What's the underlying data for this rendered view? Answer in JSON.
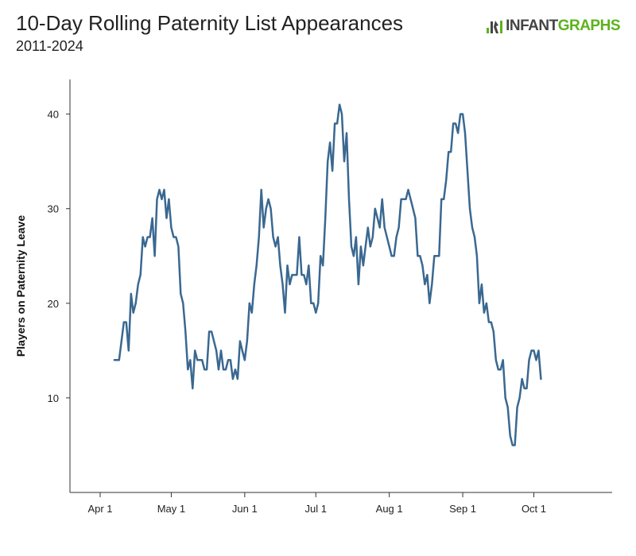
{
  "header": {
    "title": "10-Day Rolling Paternity List Appearances",
    "subtitle": "2011-2024",
    "logo": {
      "part1": "INFANT",
      "part2": "GRAPHS",
      "accent": "#5cb31c"
    }
  },
  "chart_data": {
    "type": "line",
    "title": "10-Day Rolling Paternity List Appearances",
    "subtitle": "2011-2024",
    "xlabel": "",
    "ylabel": "Players on Paternity Leave",
    "x_ticks": [
      "Apr 1",
      "May 1",
      "Jun 1",
      "Jul 1",
      "Aug 1",
      "Sep 1",
      "Oct 1"
    ],
    "ylim": [
      0,
      44
    ],
    "y_ticks": [
      10,
      20,
      30,
      40
    ],
    "grid": false,
    "line_color": "#3a6891",
    "series": [
      {
        "values": [
          [
            "Apr 7",
            14
          ],
          [
            "Apr 9",
            14
          ],
          [
            "Apr 10",
            16
          ],
          [
            "Apr 11",
            18
          ],
          [
            "Apr 12",
            18
          ],
          [
            "Apr 13",
            15
          ],
          [
            "Apr 14",
            21
          ],
          [
            "Apr 15",
            19
          ],
          [
            "Apr 16",
            20
          ],
          [
            "Apr 17",
            22
          ],
          [
            "Apr 18",
            23
          ],
          [
            "Apr 19",
            27
          ],
          [
            "Apr 20",
            26
          ],
          [
            "Apr 21",
            27
          ],
          [
            "Apr 22",
            27
          ],
          [
            "Apr 23",
            29
          ],
          [
            "Apr 24",
            25
          ],
          [
            "Apr 25",
            31
          ],
          [
            "Apr 26",
            32
          ],
          [
            "Apr 27",
            31
          ],
          [
            "Apr 28",
            32
          ],
          [
            "Apr 29",
            29
          ],
          [
            "Apr 30",
            31
          ],
          [
            "May 1",
            28
          ],
          [
            "May 2",
            27
          ],
          [
            "May 3",
            27
          ],
          [
            "May 4",
            26
          ],
          [
            "May 5",
            21
          ],
          [
            "May 6",
            20
          ],
          [
            "May 7",
            17
          ],
          [
            "May 8",
            13
          ],
          [
            "May 9",
            14
          ],
          [
            "May 10",
            11
          ],
          [
            "May 11",
            15
          ],
          [
            "May 12",
            14
          ],
          [
            "May 13",
            14
          ],
          [
            "May 14",
            14
          ],
          [
            "May 15",
            13
          ],
          [
            "May 16",
            13
          ],
          [
            "May 17",
            17
          ],
          [
            "May 18",
            17
          ],
          [
            "May 19",
            16
          ],
          [
            "May 20",
            15
          ],
          [
            "May 21",
            13
          ],
          [
            "May 22",
            15
          ],
          [
            "May 23",
            13
          ],
          [
            "May 24",
            13
          ],
          [
            "May 25",
            14
          ],
          [
            "May 26",
            14
          ],
          [
            "May 27",
            12
          ],
          [
            "May 28",
            13
          ],
          [
            "May 29",
            12
          ],
          [
            "May 30",
            16
          ],
          [
            "May 31",
            15
          ],
          [
            "Jun 1",
            14
          ],
          [
            "Jun 2",
            16
          ],
          [
            "Jun 3",
            20
          ],
          [
            "Jun 4",
            19
          ],
          [
            "Jun 5",
            22
          ],
          [
            "Jun 6",
            24
          ],
          [
            "Jun 7",
            27
          ],
          [
            "Jun 8",
            32
          ],
          [
            "Jun 9",
            28
          ],
          [
            "Jun 10",
            30
          ],
          [
            "Jun 11",
            31
          ],
          [
            "Jun 12",
            30
          ],
          [
            "Jun 13",
            27
          ],
          [
            "Jun 14",
            26
          ],
          [
            "Jun 15",
            27
          ],
          [
            "Jun 16",
            24
          ],
          [
            "Jun 17",
            22
          ],
          [
            "Jun 18",
            19
          ],
          [
            "Jun 19",
            24
          ],
          [
            "Jun 20",
            22
          ],
          [
            "Jun 21",
            23
          ],
          [
            "Jun 22",
            23
          ],
          [
            "Jun 23",
            23
          ],
          [
            "Jun 24",
            27
          ],
          [
            "Jun 25",
            23
          ],
          [
            "Jun 26",
            23
          ],
          [
            "Jun 27",
            22
          ],
          [
            "Jun 28",
            24
          ],
          [
            "Jun 29",
            20
          ],
          [
            "Jun 30",
            20
          ],
          [
            "Jul 1",
            19
          ],
          [
            "Jul 2",
            20
          ],
          [
            "Jul 3",
            25
          ],
          [
            "Jul 4",
            24
          ],
          [
            "Jul 5",
            29
          ],
          [
            "Jul 6",
            35
          ],
          [
            "Jul 7",
            37
          ],
          [
            "Jul 8",
            34
          ],
          [
            "Jul 9",
            39
          ],
          [
            "Jul 10",
            39
          ],
          [
            "Jul 11",
            41
          ],
          [
            "Jul 12",
            40
          ],
          [
            "Jul 13",
            35
          ],
          [
            "Jul 14",
            38
          ],
          [
            "Jul 15",
            31
          ],
          [
            "Jul 16",
            26
          ],
          [
            "Jul 17",
            25
          ],
          [
            "Jul 18",
            27
          ],
          [
            "Jul 19",
            22
          ],
          [
            "Jul 20",
            26
          ],
          [
            "Jul 21",
            24
          ],
          [
            "Jul 22",
            26
          ],
          [
            "Jul 23",
            28
          ],
          [
            "Jul 24",
            26
          ],
          [
            "Jul 25",
            27
          ],
          [
            "Jul 26",
            30
          ],
          [
            "Jul 27",
            29
          ],
          [
            "Jul 28",
            28
          ],
          [
            "Jul 29",
            31
          ],
          [
            "Jul 30",
            28
          ],
          [
            "Jul 31",
            27
          ],
          [
            "Aug 1",
            26
          ],
          [
            "Aug 2",
            25
          ],
          [
            "Aug 3",
            25
          ],
          [
            "Aug 4",
            27
          ],
          [
            "Aug 5",
            28
          ],
          [
            "Aug 6",
            31
          ],
          [
            "Aug 7",
            31
          ],
          [
            "Aug 8",
            31
          ],
          [
            "Aug 9",
            32
          ],
          [
            "Aug 10",
            31
          ],
          [
            "Aug 11",
            30
          ],
          [
            "Aug 12",
            29
          ],
          [
            "Aug 13",
            25
          ],
          [
            "Aug 14",
            25
          ],
          [
            "Aug 15",
            24
          ],
          [
            "Aug 16",
            22
          ],
          [
            "Aug 17",
            23
          ],
          [
            "Aug 18",
            20
          ],
          [
            "Aug 19",
            22
          ],
          [
            "Aug 20",
            25
          ],
          [
            "Aug 21",
            25
          ],
          [
            "Aug 22",
            25
          ],
          [
            "Aug 23",
            31
          ],
          [
            "Aug 24",
            31
          ],
          [
            "Aug 25",
            33
          ],
          [
            "Aug 26",
            36
          ],
          [
            "Aug 27",
            36
          ],
          [
            "Aug 28",
            39
          ],
          [
            "Aug 29",
            39
          ],
          [
            "Aug 30",
            38
          ],
          [
            "Aug 31",
            40
          ],
          [
            "Sep 1",
            40
          ],
          [
            "Sep 2",
            38
          ],
          [
            "Sep 3",
            34
          ],
          [
            "Sep 4",
            30
          ],
          [
            "Sep 5",
            28
          ],
          [
            "Sep 6",
            27
          ],
          [
            "Sep 7",
            25
          ],
          [
            "Sep 8",
            20
          ],
          [
            "Sep 9",
            22
          ],
          [
            "Sep 10",
            19
          ],
          [
            "Sep 11",
            20
          ],
          [
            "Sep 12",
            18
          ],
          [
            "Sep 13",
            18
          ],
          [
            "Sep 14",
            17
          ],
          [
            "Sep 15",
            14
          ],
          [
            "Sep 16",
            13
          ],
          [
            "Sep 17",
            13
          ],
          [
            "Sep 18",
            14
          ],
          [
            "Sep 19",
            10
          ],
          [
            "Sep 20",
            9
          ],
          [
            "Sep 21",
            6
          ],
          [
            "Sep 22",
            5
          ],
          [
            "Sep 23",
            5
          ],
          [
            "Sep 24",
            9
          ],
          [
            "Sep 25",
            10
          ],
          [
            "Sep 26",
            12
          ],
          [
            "Sep 27",
            11
          ],
          [
            "Sep 28",
            11
          ],
          [
            "Sep 29",
            14
          ],
          [
            "Sep 30",
            15
          ],
          [
            "Oct 1",
            15
          ],
          [
            "Oct 2",
            14
          ],
          [
            "Oct 3",
            15
          ],
          [
            "Oct 4",
            12
          ]
        ]
      }
    ]
  }
}
